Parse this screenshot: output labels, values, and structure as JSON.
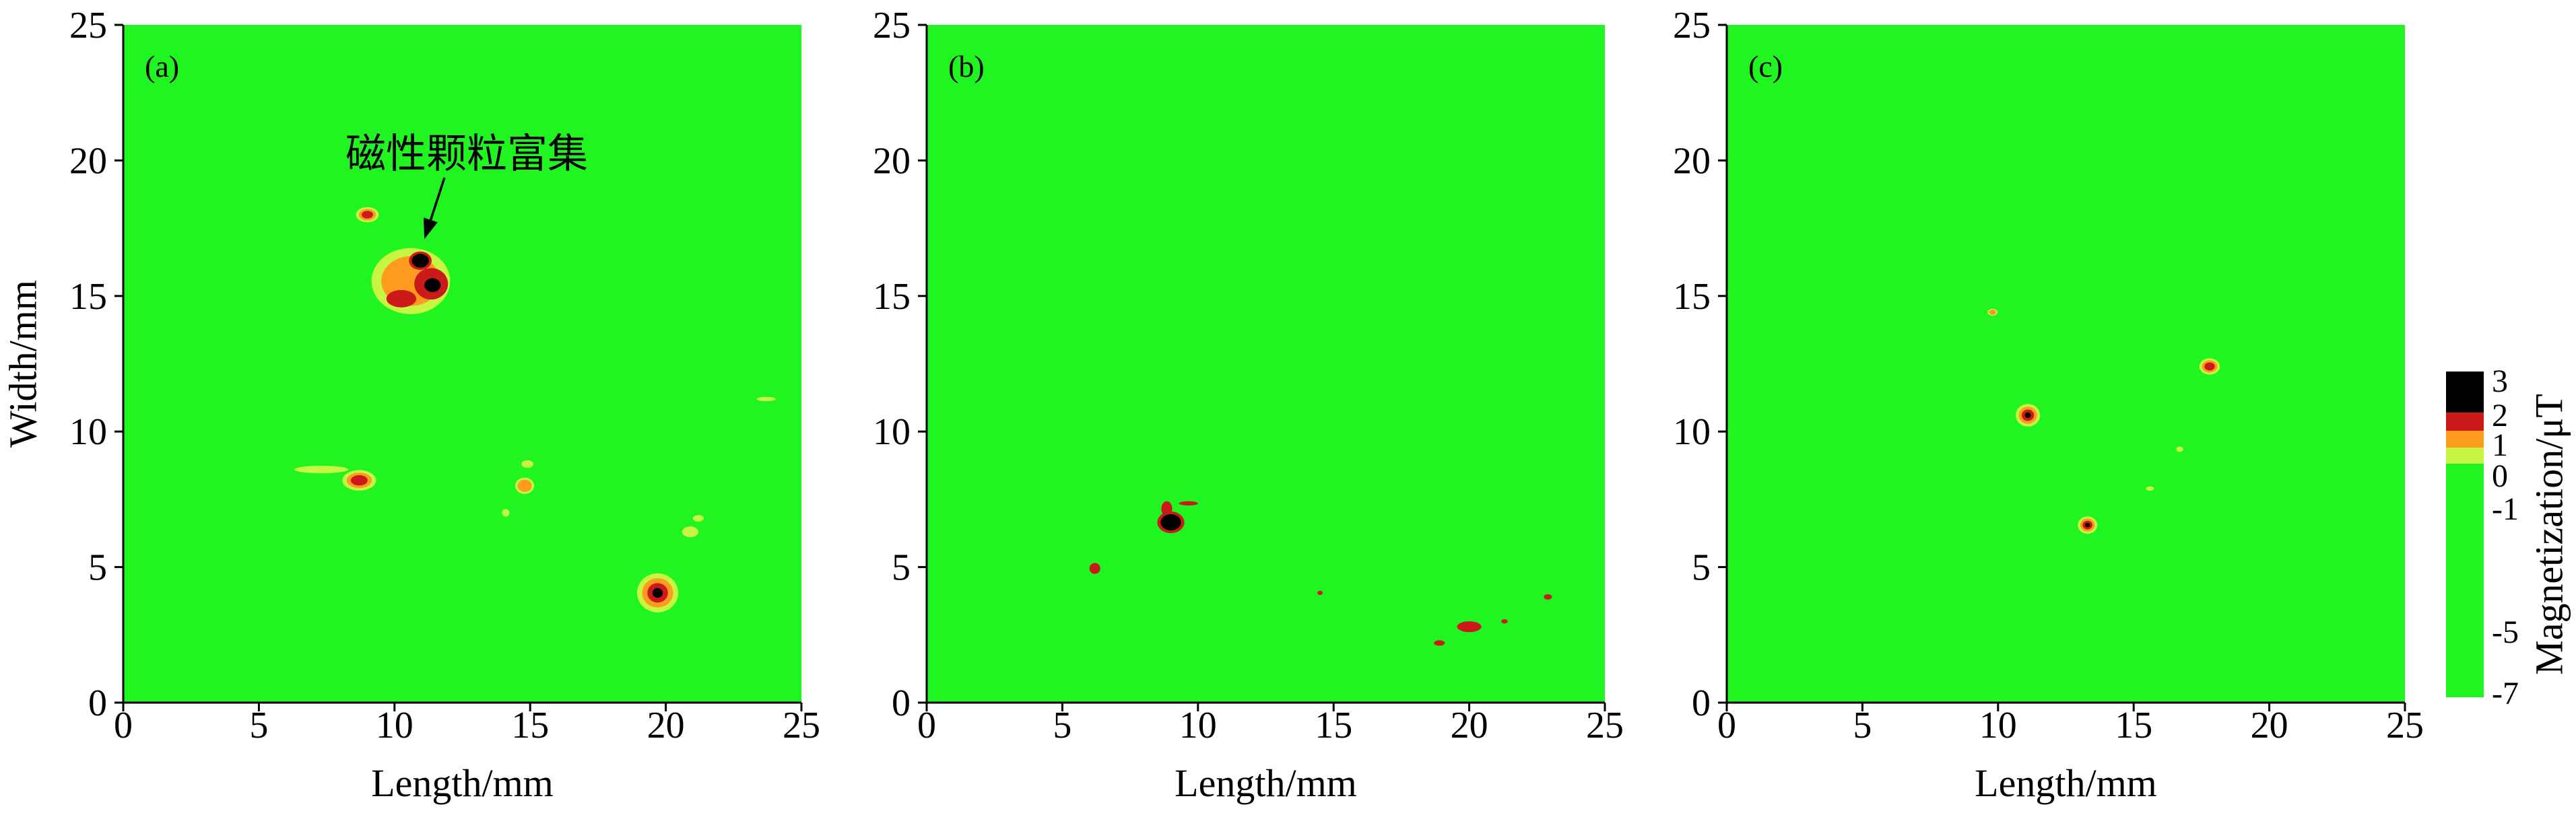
{
  "chart_data": {
    "type": "heatmap",
    "field_color": "#21f521",
    "level_colors": [
      "#c6f542",
      "#ff9b1f",
      "#cc1a1a",
      "#000000"
    ],
    "colorbar": {
      "label": "Magnetization/μT",
      "ticks": [
        3,
        2,
        1,
        0,
        -1,
        -5,
        -7
      ],
      "colors": [
        "#000000",
        "#cc1a1a",
        "#ff9b1f",
        "#c6f542",
        "#21f521"
      ]
    },
    "panels": [
      {
        "label": "(a)",
        "xlabel": "Length/mm",
        "ylabel": "Width/mm",
        "xlim": [
          0,
          25
        ],
        "ylim": [
          0,
          25
        ],
        "xticks": [
          0,
          5,
          10,
          15,
          20,
          25
        ],
        "yticks": [
          0,
          5,
          10,
          15,
          20,
          25
        ],
        "annotation": {
          "text": "磁性颗粒富集",
          "target": [
            11.1,
            17.1
          ]
        },
        "spots": [
          {
            "x": 10.6,
            "y": 15.55,
            "half_length": 1.45,
            "half_width": 1.22,
            "levels": [
              0,
              1
            ]
          },
          {
            "x": 10.25,
            "y": 14.9,
            "half_length": 0.55,
            "half_width": 0.32,
            "levels": [
              2
            ]
          },
          {
            "x": 11.35,
            "y": 15.45,
            "half_length": 0.62,
            "half_width": 0.58,
            "levels": [
              2
            ]
          },
          {
            "x": 10.95,
            "y": 16.3,
            "half_length": 0.42,
            "half_width": 0.34,
            "levels": [
              2,
              3
            ]
          },
          {
            "x": 11.4,
            "y": 15.4,
            "half_length": 0.4,
            "half_width": 0.34,
            "levels": [
              2,
              3
            ]
          },
          {
            "x": 9.0,
            "y": 18.0,
            "half_length": 0.42,
            "half_width": 0.28,
            "levels": [
              0,
              1,
              2
            ]
          },
          {
            "x": 7.3,
            "y": 8.6,
            "half_length": 1.0,
            "half_width": 0.14,
            "levels": [
              0
            ]
          },
          {
            "x": 8.7,
            "y": 8.2,
            "half_length": 0.62,
            "half_width": 0.38,
            "levels": [
              0,
              1,
              2
            ]
          },
          {
            "x": 14.8,
            "y": 8.0,
            "half_length": 0.35,
            "half_width": 0.3,
            "levels": [
              0,
              1
            ]
          },
          {
            "x": 14.9,
            "y": 8.8,
            "half_length": 0.22,
            "half_width": 0.14,
            "levels": [
              0
            ]
          },
          {
            "x": 14.1,
            "y": 7.0,
            "half_length": 0.14,
            "half_width": 0.14,
            "levels": [
              0
            ]
          },
          {
            "x": 19.7,
            "y": 4.05,
            "half_length": 0.76,
            "half_width": 0.72,
            "levels": [
              0,
              1,
              2,
              3
            ]
          },
          {
            "x": 20.9,
            "y": 6.3,
            "half_length": 0.3,
            "half_width": 0.2,
            "levels": [
              0
            ]
          },
          {
            "x": 21.2,
            "y": 6.8,
            "half_length": 0.2,
            "half_width": 0.12,
            "levels": [
              0
            ]
          },
          {
            "x": 23.7,
            "y": 11.2,
            "half_length": 0.35,
            "half_width": 0.08,
            "levels": [
              0
            ]
          }
        ]
      },
      {
        "label": "(b)",
        "xlabel": "Length/mm",
        "xlim": [
          0,
          25
        ],
        "ylim": [
          0,
          25
        ],
        "xticks": [
          0,
          5,
          10,
          15,
          20,
          25
        ],
        "yticks": [
          0,
          5,
          10,
          15,
          20,
          25
        ],
        "spots": [
          {
            "x": 9.0,
            "y": 6.65,
            "half_length": 0.5,
            "half_width": 0.4,
            "levels": [
              2,
              3
            ]
          },
          {
            "x": 8.85,
            "y": 7.15,
            "half_length": 0.2,
            "half_width": 0.28,
            "levels": [
              2
            ]
          },
          {
            "x": 9.65,
            "y": 7.35,
            "half_length": 0.35,
            "half_width": 0.08,
            "levels": [
              2
            ]
          },
          {
            "x": 6.2,
            "y": 4.95,
            "half_length": 0.2,
            "half_width": 0.2,
            "levels": [
              2
            ]
          },
          {
            "x": 20.0,
            "y": 2.8,
            "half_length": 0.45,
            "half_width": 0.2,
            "levels": [
              2
            ]
          },
          {
            "x": 18.9,
            "y": 2.2,
            "half_length": 0.2,
            "half_width": 0.1,
            "levels": [
              2
            ]
          },
          {
            "x": 21.3,
            "y": 3.0,
            "half_length": 0.12,
            "half_width": 0.08,
            "levels": [
              2
            ]
          },
          {
            "x": 22.9,
            "y": 3.9,
            "half_length": 0.15,
            "half_width": 0.1,
            "levels": [
              2
            ]
          },
          {
            "x": 14.5,
            "y": 4.05,
            "half_length": 0.1,
            "half_width": 0.08,
            "levels": [
              2
            ]
          }
        ]
      },
      {
        "label": "(c)",
        "xlabel": "Length/mm",
        "xlim": [
          0,
          25
        ],
        "ylim": [
          0,
          25
        ],
        "xticks": [
          0,
          5,
          10,
          15,
          20,
          25
        ],
        "yticks": [
          0,
          5,
          10,
          15,
          20,
          25
        ],
        "spots": [
          {
            "x": 11.1,
            "y": 10.6,
            "half_length": 0.45,
            "half_width": 0.42,
            "levels": [
              0,
              1,
              2,
              3
            ]
          },
          {
            "x": 13.3,
            "y": 6.55,
            "half_length": 0.36,
            "half_width": 0.32,
            "levels": [
              0,
              1,
              2,
              3
            ]
          },
          {
            "x": 17.8,
            "y": 12.4,
            "half_length": 0.38,
            "half_width": 0.3,
            "levels": [
              0,
              1,
              2
            ]
          },
          {
            "x": 9.8,
            "y": 14.4,
            "half_length": 0.18,
            "half_width": 0.13,
            "levels": [
              0,
              1
            ]
          },
          {
            "x": 16.7,
            "y": 9.35,
            "half_length": 0.13,
            "half_width": 0.1,
            "levels": [
              0
            ]
          },
          {
            "x": 15.6,
            "y": 7.9,
            "half_length": 0.15,
            "half_width": 0.08,
            "levels": [
              0
            ]
          }
        ]
      }
    ]
  }
}
